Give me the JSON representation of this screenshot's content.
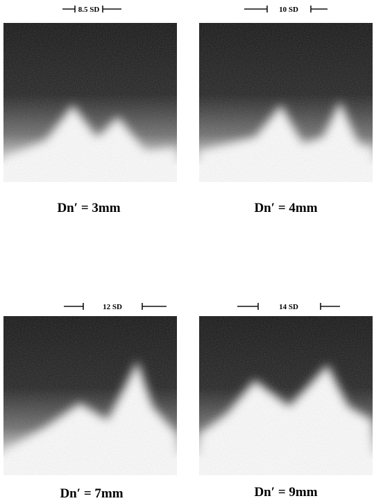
{
  "panels": [
    {
      "scale": "8.5 SD",
      "caption": "Dn′ = 3mm"
    },
    {
      "scale": "10 SD",
      "caption": "Dn′ = 4mm"
    },
    {
      "scale": "12 SD",
      "caption": "Dn′ = 7mm"
    },
    {
      "scale": "14 SD",
      "caption": "Dn′ = 9mm"
    }
  ]
}
